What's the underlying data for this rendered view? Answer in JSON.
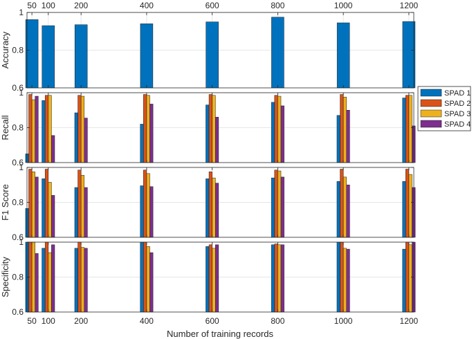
{
  "chart_data": {
    "type": "bar",
    "xlabel": "Number of training records",
    "x": [
      50,
      100,
      200,
      400,
      600,
      800,
      1000,
      1200
    ],
    "x_tick_labels": [
      "50",
      "100",
      "200",
      "400",
      "600",
      "800",
      "1000",
      "1200"
    ],
    "legend": {
      "placement": "right",
      "entries": [
        "SPAD 1",
        "SPAD 2",
        "SPAD 3",
        "SPAD 4"
      ]
    },
    "series_colors": [
      "#0072BD",
      "#D95319",
      "#EDB120",
      "#7E2F8E"
    ],
    "grid": true,
    "panels": [
      {
        "ylabel": "Accuracy",
        "ylim": [
          0.6,
          1
        ],
        "yticks": [
          "0.6",
          "0.8",
          "1"
        ],
        "series": [
          {
            "values": [
              0.962,
              0.93,
              0.935,
              0.94,
              0.95,
              0.975,
              0.945,
              0.952
            ]
          }
        ]
      },
      {
        "ylabel": "Recall",
        "ylim": [
          0.6,
          1
        ],
        "yticks": [
          "0.6",
          "0.8",
          "1"
        ],
        "series": [
          {
            "name": "SPAD 1",
            "values": [
              0.65,
              0.955,
              0.885,
              0.82,
              0.93,
              0.945,
              0.87,
              0.97
            ]
          },
          {
            "name": "SPAD 2",
            "values": [
              0.99,
              0.985,
              0.985,
              0.99,
              0.99,
              0.985,
              0.99,
              0.985
            ]
          },
          {
            "name": "SPAD 3",
            "values": [
              0.96,
              0.985,
              0.98,
              0.985,
              0.985,
              0.98,
              0.975,
              0.985
            ]
          },
          {
            "name": "SPAD 4",
            "values": [
              0.98,
              0.755,
              0.855,
              0.935,
              0.86,
              0.925,
              0.9,
              0.81
            ]
          }
        ]
      },
      {
        "ylabel": "F1 Score",
        "ylim": [
          0.6,
          1
        ],
        "yticks": [
          "0.6",
          "0.8",
          "1"
        ],
        "series": [
          {
            "name": "SPAD 1",
            "values": [
              0.765,
              0.935,
              0.885,
              0.895,
              0.935,
              0.94,
              0.92,
              0.92
            ]
          },
          {
            "name": "SPAD 2",
            "values": [
              0.99,
              0.99,
              0.985,
              0.985,
              0.975,
              0.985,
              0.99,
              0.99
            ]
          },
          {
            "name": "SPAD 3",
            "values": [
              0.975,
              0.915,
              0.955,
              0.965,
              0.94,
              0.98,
              0.945,
              0.96
            ]
          },
          {
            "name": "SPAD 4",
            "values": [
              0.945,
              0.84,
              0.885,
              0.89,
              0.91,
              0.945,
              0.9,
              0.885
            ]
          }
        ]
      },
      {
        "ylabel": "Specificity",
        "ylim": [
          0.6,
          1
        ],
        "yticks": [
          "0.6",
          "0.8",
          "1"
        ],
        "series": [
          {
            "name": "SPAD 1",
            "values": [
              1.0,
              0.965,
              0.965,
              1.0,
              0.975,
              0.985,
              1.0,
              0.96
            ]
          },
          {
            "name": "SPAD 2",
            "values": [
              1.0,
              1.0,
              1.0,
              1.0,
              0.985,
              0.99,
              1.0,
              1.0
            ]
          },
          {
            "name": "SPAD 3",
            "values": [
              1.0,
              0.94,
              0.97,
              0.975,
              0.965,
              0.985,
              0.965,
              0.985
            ]
          },
          {
            "name": "SPAD 4",
            "values": [
              0.935,
              0.985,
              0.965,
              0.94,
              0.985,
              0.985,
              0.96,
              1.0
            ]
          }
        ]
      }
    ]
  }
}
